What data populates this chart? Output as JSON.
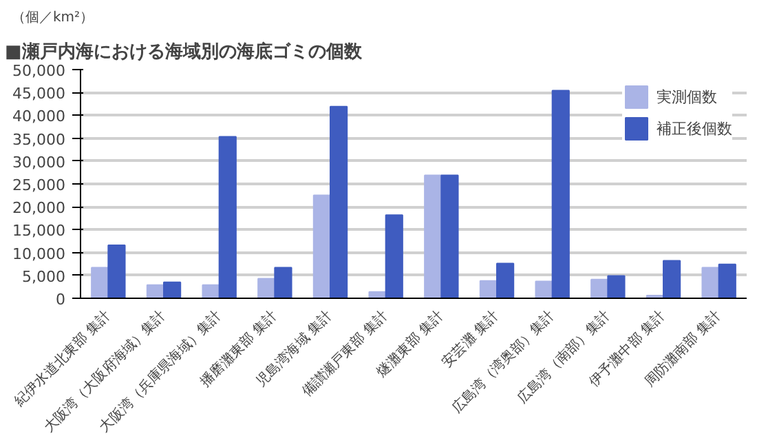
{
  "chart_data": {
    "type": "bar",
    "title": "■瀬戸内海における海域別の海底ゴミの個数",
    "ylabel": "（個／km²）",
    "categories": [
      "紀伊水道北東部 集計",
      "大阪湾（大阪府海域）集計",
      "大阪湾（兵庫県海域）集計",
      "播磨灘東部 集計",
      "児島湾海域 集計",
      "備讃瀬戸東部 集計",
      "燧灘東部 集計",
      "安芸灘 集計",
      "広島湾（湾奥部）集計",
      "広島湾（南部）集計",
      "伊予灘中部 集計",
      "周防灘南部 集計"
    ],
    "series": [
      {
        "name": "実測個数",
        "color": "#aab4e6",
        "values": [
          6700,
          2900,
          2900,
          4300,
          22500,
          1400,
          26900,
          3800,
          3700,
          4100,
          600,
          6700
        ]
      },
      {
        "name": "補正後個数",
        "color": "#3f5cc0",
        "values": [
          11600,
          3500,
          35300,
          6700,
          41900,
          18200,
          26900,
          7600,
          45400,
          4900,
          8200,
          7400
        ]
      }
    ],
    "ylim": [
      0,
      50000
    ],
    "yticks": [
      {
        "value": 0,
        "label": "0"
      },
      {
        "value": 5000,
        "label": "5,000"
      },
      {
        "value": 10000,
        "label": "10,000"
      },
      {
        "value": 15000,
        "label": "15,000"
      },
      {
        "value": 20000,
        "label": "20,000"
      },
      {
        "value": 25000,
        "label": "25,000"
      },
      {
        "value": 30000,
        "label": "30,000"
      },
      {
        "value": 35000,
        "label": "35,000"
      },
      {
        "value": 40000,
        "label": "40,000"
      },
      {
        "value": 45000,
        "label": "45,000"
      },
      {
        "value": 50000,
        "label": "50,000"
      }
    ],
    "grid": "y",
    "legend": "top right"
  }
}
